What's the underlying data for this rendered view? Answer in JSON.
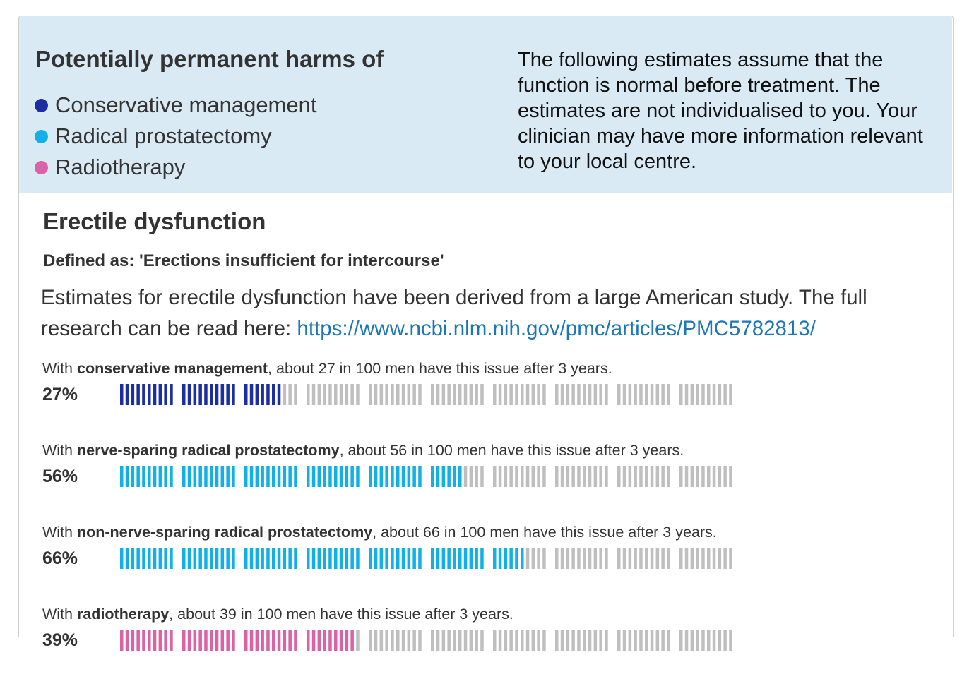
{
  "header": {
    "title": "Potentially permanent harms of",
    "legend": [
      {
        "label": "Conservative management",
        "color": "#1b2ea3"
      },
      {
        "label": "Radical prostatectomy",
        "color": "#11b0e6"
      },
      {
        "label": "Radiotherapy",
        "color": "#d962a8"
      }
    ],
    "note": "The following estimates assume that the function is normal before treatment. The estimates are not individualised to you. Your clinician may have more information relevant to your local centre."
  },
  "section": {
    "title": "Erectile dysfunction",
    "defined": "Defined as: 'Erections insufficient for intercourse'",
    "intro": "Estimates for erectile dysfunction have been derived from a large American study. The full research can be read here: ",
    "link": "https://www.ncbi.nlm.nih.gov/pmc/articles/PMC5782813/"
  },
  "colors": {
    "empty": "#bfbfbf"
  },
  "rows": [
    {
      "prefix": "With ",
      "treatment": "conservative management",
      "suffix": ", about 27 in 100 men have this issue after 3 years.",
      "percent_label": "27%",
      "value": 27,
      "color": "#1b2ea3"
    },
    {
      "prefix": "With ",
      "treatment": "nerve-sparing radical prostatectomy",
      "suffix": ", about 56 in 100 men have this issue after 3 years.",
      "percent_label": "56%",
      "value": 56,
      "color": "#11b0e6"
    },
    {
      "prefix": "With ",
      "treatment": "non-nerve-sparing radical prostatectomy",
      "suffix": ", about 66 in 100 men have this issue after 3 years.",
      "percent_label": "66%",
      "value": 66,
      "color": "#11b0e6"
    },
    {
      "prefix": "With ",
      "treatment": "radiotherapy",
      "suffix": ", about 39 in 100 men have this issue after 3 years.",
      "percent_label": "39%",
      "value": 39,
      "color": "#d962a8"
    }
  ]
}
